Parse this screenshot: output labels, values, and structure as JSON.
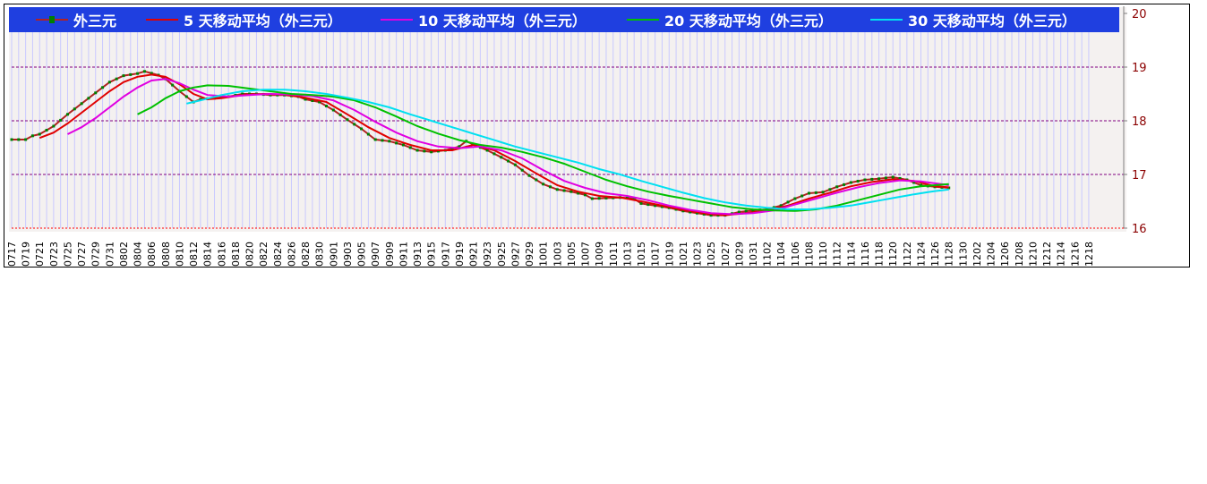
{
  "chart_data": {
    "type": "line",
    "legend_position": "top",
    "ylim": [
      16,
      20
    ],
    "yticks": [
      "16",
      "17",
      "18",
      "19",
      "20"
    ],
    "grid": "horizontal dashed",
    "x_labels": [
      "0717",
      "0719",
      "0721",
      "0723",
      "0725",
      "0727",
      "0729",
      "0731",
      "0802",
      "0804",
      "0806",
      "0808",
      "0810",
      "0812",
      "0814",
      "0816",
      "0818",
      "0820",
      "0822",
      "0824",
      "0826",
      "0828",
      "0830",
      "0901",
      "0903",
      "0905",
      "0907",
      "0909",
      "0911",
      "0913",
      "0915",
      "0917",
      "0919",
      "0921",
      "0923",
      "0925",
      "0927",
      "0929",
      "1001",
      "1003",
      "1005",
      "1007",
      "1009",
      "1011",
      "1013",
      "1015",
      "1017",
      "1019",
      "1021",
      "1023",
      "1025",
      "1027",
      "1029",
      "1031",
      "1102",
      "1104",
      "1106",
      "1108",
      "1110",
      "1112",
      "1114",
      "1116",
      "1118",
      "1120",
      "1122",
      "1124",
      "1126",
      "1128",
      "1130",
      "1202",
      "1204",
      "1206",
      "1208",
      "1210",
      "1212",
      "1214",
      "1216",
      "1218"
    ],
    "series": [
      {
        "name": "外三元",
        "color": "#b22222",
        "marker": "#008000",
        "anchors": [
          [
            0,
            17.65
          ],
          [
            2,
            17.65
          ],
          [
            3,
            17.72
          ],
          [
            4,
            17.75
          ],
          [
            6,
            17.9
          ],
          [
            8,
            18.12
          ],
          [
            10,
            18.32
          ],
          [
            12,
            18.52
          ],
          [
            14,
            18.72
          ],
          [
            16,
            18.84
          ],
          [
            18,
            18.88
          ],
          [
            19,
            18.92
          ],
          [
            21,
            18.85
          ],
          [
            22,
            18.78
          ],
          [
            24,
            18.55
          ],
          [
            25,
            18.45
          ],
          [
            26,
            18.35
          ],
          [
            27,
            18.4
          ],
          [
            29,
            18.42
          ],
          [
            31,
            18.45
          ],
          [
            33,
            18.5
          ],
          [
            35,
            18.5
          ],
          [
            37,
            18.48
          ],
          [
            39,
            18.48
          ],
          [
            41,
            18.45
          ],
          [
            42,
            18.4
          ],
          [
            44,
            18.35
          ],
          [
            46,
            18.2
          ],
          [
            48,
            18.02
          ],
          [
            50,
            17.85
          ],
          [
            52,
            17.65
          ],
          [
            54,
            17.62
          ],
          [
            56,
            17.55
          ],
          [
            58,
            17.45
          ],
          [
            60,
            17.42
          ],
          [
            62,
            17.45
          ],
          [
            64,
            17.52
          ],
          [
            65,
            17.62
          ],
          [
            66,
            17.56
          ],
          [
            68,
            17.45
          ],
          [
            70,
            17.32
          ],
          [
            72,
            17.18
          ],
          [
            74,
            16.98
          ],
          [
            76,
            16.82
          ],
          [
            78,
            16.72
          ],
          [
            80,
            16.68
          ],
          [
            82,
            16.62
          ],
          [
            83,
            16.55
          ],
          [
            85,
            16.56
          ],
          [
            87,
            16.57
          ],
          [
            89,
            16.55
          ],
          [
            90,
            16.46
          ],
          [
            92,
            16.42
          ],
          [
            94,
            16.38
          ],
          [
            96,
            16.32
          ],
          [
            98,
            16.28
          ],
          [
            100,
            16.24
          ],
          [
            102,
            16.24
          ],
          [
            104,
            16.3
          ],
          [
            106,
            16.33
          ],
          [
            108,
            16.35
          ],
          [
            110,
            16.42
          ],
          [
            112,
            16.55
          ],
          [
            114,
            16.65
          ],
          [
            116,
            16.67
          ],
          [
            118,
            16.77
          ],
          [
            120,
            16.85
          ],
          [
            122,
            16.9
          ],
          [
            124,
            16.92
          ],
          [
            126,
            16.95
          ],
          [
            128,
            16.9
          ],
          [
            129,
            16.85
          ],
          [
            130,
            16.8
          ],
          [
            132,
            16.77
          ],
          [
            134,
            16.75
          ]
        ]
      },
      {
        "name": "5 天移动平均（外三元）",
        "color": "#e00000",
        "anchors": [
          [
            4,
            17.68
          ],
          [
            6,
            17.78
          ],
          [
            8,
            17.95
          ],
          [
            10,
            18.15
          ],
          [
            12,
            18.35
          ],
          [
            14,
            18.55
          ],
          [
            16,
            18.72
          ],
          [
            18,
            18.82
          ],
          [
            20,
            18.86
          ],
          [
            22,
            18.82
          ],
          [
            24,
            18.68
          ],
          [
            26,
            18.5
          ],
          [
            28,
            18.4
          ],
          [
            30,
            18.42
          ],
          [
            33,
            18.48
          ],
          [
            36,
            18.5
          ],
          [
            39,
            18.49
          ],
          [
            42,
            18.43
          ],
          [
            45,
            18.35
          ],
          [
            48,
            18.12
          ],
          [
            51,
            17.88
          ],
          [
            54,
            17.68
          ],
          [
            57,
            17.55
          ],
          [
            60,
            17.45
          ],
          [
            63,
            17.45
          ],
          [
            66,
            17.55
          ],
          [
            69,
            17.45
          ],
          [
            72,
            17.25
          ],
          [
            75,
            17.02
          ],
          [
            78,
            16.8
          ],
          [
            81,
            16.68
          ],
          [
            84,
            16.6
          ],
          [
            87,
            16.57
          ],
          [
            90,
            16.5
          ],
          [
            93,
            16.42
          ],
          [
            96,
            16.34
          ],
          [
            99,
            16.28
          ],
          [
            102,
            16.24
          ],
          [
            105,
            16.28
          ],
          [
            108,
            16.33
          ],
          [
            111,
            16.42
          ],
          [
            114,
            16.55
          ],
          [
            117,
            16.66
          ],
          [
            120,
            16.78
          ],
          [
            123,
            16.86
          ],
          [
            126,
            16.91
          ],
          [
            129,
            16.88
          ],
          [
            132,
            16.78
          ],
          [
            134,
            16.76
          ]
        ]
      },
      {
        "name": "10 天移动平均（外三元）",
        "color": "#e000e0",
        "anchors": [
          [
            8,
            17.75
          ],
          [
            10,
            17.88
          ],
          [
            12,
            18.05
          ],
          [
            14,
            18.25
          ],
          [
            16,
            18.45
          ],
          [
            18,
            18.62
          ],
          [
            20,
            18.75
          ],
          [
            22,
            18.78
          ],
          [
            24,
            18.7
          ],
          [
            26,
            18.58
          ],
          [
            28,
            18.48
          ],
          [
            31,
            18.45
          ],
          [
            34,
            18.48
          ],
          [
            37,
            18.5
          ],
          [
            40,
            18.49
          ],
          [
            43,
            18.46
          ],
          [
            46,
            18.38
          ],
          [
            49,
            18.2
          ],
          [
            52,
            17.98
          ],
          [
            55,
            17.78
          ],
          [
            58,
            17.62
          ],
          [
            61,
            17.52
          ],
          [
            64,
            17.49
          ],
          [
            67,
            17.52
          ],
          [
            70,
            17.45
          ],
          [
            73,
            17.3
          ],
          [
            76,
            17.08
          ],
          [
            79,
            16.88
          ],
          [
            82,
            16.75
          ],
          [
            85,
            16.65
          ],
          [
            88,
            16.6
          ],
          [
            91,
            16.52
          ],
          [
            94,
            16.42
          ],
          [
            97,
            16.34
          ],
          [
            100,
            16.28
          ],
          [
            103,
            16.26
          ],
          [
            106,
            16.28
          ],
          [
            109,
            16.33
          ],
          [
            112,
            16.44
          ],
          [
            115,
            16.55
          ],
          [
            118,
            16.66
          ],
          [
            121,
            16.76
          ],
          [
            124,
            16.84
          ],
          [
            127,
            16.89
          ],
          [
            130,
            16.87
          ],
          [
            134,
            16.8
          ]
        ]
      },
      {
        "name": "20 天移动平均（外三元）",
        "color": "#00c000",
        "anchors": [
          [
            18,
            18.12
          ],
          [
            20,
            18.25
          ],
          [
            22,
            18.42
          ],
          [
            24,
            18.55
          ],
          [
            26,
            18.62
          ],
          [
            28,
            18.66
          ],
          [
            31,
            18.65
          ],
          [
            34,
            18.6
          ],
          [
            37,
            18.55
          ],
          [
            40,
            18.5
          ],
          [
            43,
            18.48
          ],
          [
            46,
            18.45
          ],
          [
            49,
            18.38
          ],
          [
            52,
            18.25
          ],
          [
            55,
            18.08
          ],
          [
            58,
            17.9
          ],
          [
            61,
            17.76
          ],
          [
            64,
            17.64
          ],
          [
            67,
            17.55
          ],
          [
            70,
            17.5
          ],
          [
            73,
            17.42
          ],
          [
            76,
            17.32
          ],
          [
            79,
            17.2
          ],
          [
            82,
            17.05
          ],
          [
            85,
            16.9
          ],
          [
            88,
            16.78
          ],
          [
            91,
            16.68
          ],
          [
            94,
            16.6
          ],
          [
            97,
            16.53
          ],
          [
            100,
            16.46
          ],
          [
            103,
            16.39
          ],
          [
            106,
            16.35
          ],
          [
            109,
            16.33
          ],
          [
            112,
            16.32
          ],
          [
            115,
            16.35
          ],
          [
            118,
            16.42
          ],
          [
            121,
            16.52
          ],
          [
            124,
            16.62
          ],
          [
            127,
            16.72
          ],
          [
            130,
            16.78
          ],
          [
            134,
            16.82
          ]
        ]
      },
      {
        "name": "30 天移动平均（外三元）",
        "color": "#00e0f0",
        "anchors": [
          [
            25,
            18.32
          ],
          [
            27,
            18.38
          ],
          [
            30,
            18.48
          ],
          [
            33,
            18.55
          ],
          [
            36,
            18.58
          ],
          [
            39,
            18.58
          ],
          [
            42,
            18.55
          ],
          [
            45,
            18.5
          ],
          [
            48,
            18.43
          ],
          [
            51,
            18.35
          ],
          [
            54,
            18.25
          ],
          [
            57,
            18.12
          ],
          [
            60,
            18.0
          ],
          [
            63,
            17.88
          ],
          [
            66,
            17.76
          ],
          [
            69,
            17.64
          ],
          [
            72,
            17.52
          ],
          [
            75,
            17.42
          ],
          [
            78,
            17.32
          ],
          [
            81,
            17.22
          ],
          [
            84,
            17.1
          ],
          [
            87,
            17.0
          ],
          [
            90,
            16.88
          ],
          [
            93,
            16.77
          ],
          [
            96,
            16.66
          ],
          [
            99,
            16.56
          ],
          [
            102,
            16.48
          ],
          [
            105,
            16.42
          ],
          [
            108,
            16.38
          ],
          [
            111,
            16.35
          ],
          [
            114,
            16.35
          ],
          [
            117,
            16.38
          ],
          [
            120,
            16.42
          ],
          [
            123,
            16.49
          ],
          [
            126,
            16.56
          ],
          [
            129,
            16.63
          ],
          [
            132,
            16.69
          ],
          [
            134,
            16.72
          ]
        ]
      }
    ]
  }
}
